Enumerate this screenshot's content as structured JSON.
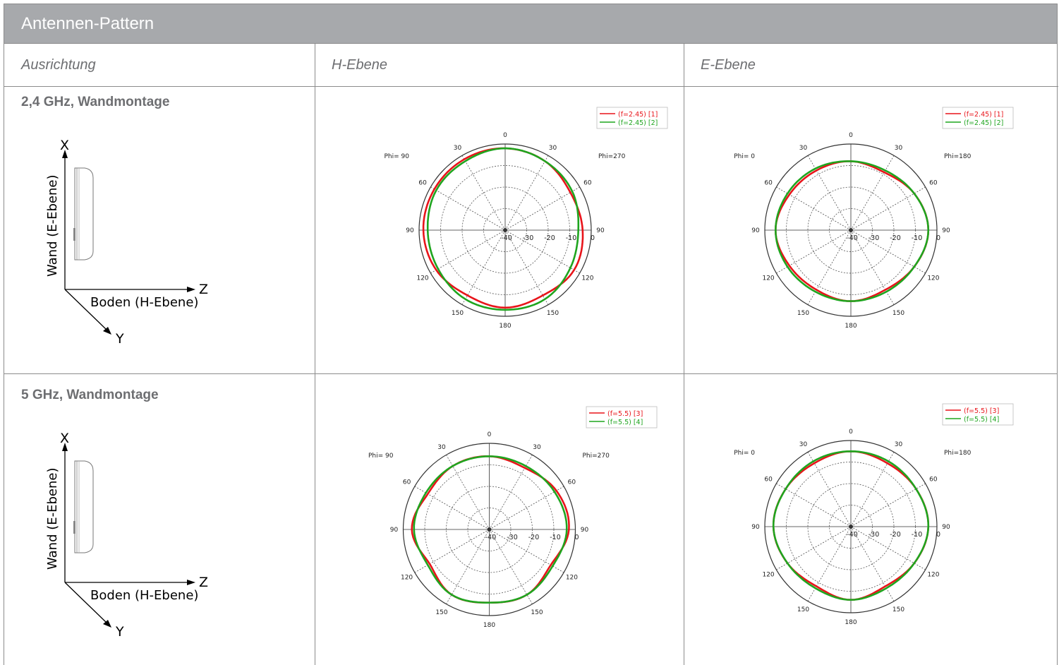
{
  "table": {
    "title": "Antennen-Pattern",
    "columns": [
      "Ausrichtung",
      "H-Ebene",
      "E-Ebene"
    ]
  },
  "orientation_diagram": {
    "x_label": "X",
    "y_label": "Y",
    "z_label": "Z",
    "wall_label": "Wand (E-Ebene)",
    "floor_label": "Boden (H-Ebene)"
  },
  "rows": [
    {
      "label": "2,4 GHz, Wandmontage",
      "h_plot": {
        "phi_left": "Phi= 90",
        "phi_right": "Phi=270",
        "legend": [
          "(f=2.45) [1]",
          "(f=2.45) [2]"
        ]
      },
      "e_plot": {
        "phi_left": "Phi= 0",
        "phi_right": "Phi=180",
        "legend": [
          "(f=2.45) [1]",
          "(f=2.45) [2]"
        ]
      }
    },
    {
      "label": "5 GHz, Wandmontage",
      "h_plot": {
        "phi_left": "Phi= 90",
        "phi_right": "Phi=270",
        "legend": [
          "(f=5.5) [3]",
          "(f=5.5) [4]"
        ]
      },
      "e_plot": {
        "phi_left": "Phi= 0",
        "phi_right": "Phi=180",
        "legend": [
          "(f=5.5) [3]",
          "(f=5.5) [4]"
        ]
      }
    }
  ],
  "polar_axes": {
    "angle_labels": [
      "0",
      "30",
      "60",
      "90",
      "120",
      "150",
      "180",
      "150",
      "120",
      "90",
      "60",
      "30"
    ],
    "radial_labels": [
      "-40",
      "-30",
      "-20",
      "-10",
      "0"
    ]
  },
  "colors": {
    "series_a": "#e8141a",
    "series_b": "#1fa51f",
    "grid": "#555555"
  },
  "chart_data": [
    {
      "type": "polar",
      "title": "2,4 GHz H-Ebene",
      "rlim": [
        -40,
        0
      ],
      "series": [
        {
          "name": "(f=2.45) [1]",
          "theta_deg": [
            0,
            30,
            60,
            90,
            120,
            150,
            180,
            210,
            240,
            270,
            300,
            330
          ],
          "r_db": [
            -2,
            -3,
            -5,
            -4,
            -3,
            -5,
            -4,
            -5,
            -3,
            -2,
            -2,
            -2
          ]
        },
        {
          "name": "(f=2.45) [2]",
          "theta_deg": [
            0,
            30,
            60,
            90,
            120,
            150,
            180,
            210,
            240,
            270,
            300,
            330
          ],
          "r_db": [
            -2,
            -3,
            -4,
            -6,
            -5,
            -3,
            -3,
            -3,
            -4,
            -4,
            -3,
            -3
          ]
        }
      ]
    },
    {
      "type": "polar",
      "title": "2,4 GHz E-Ebene",
      "rlim": [
        -40,
        0
      ],
      "series": [
        {
          "name": "(f=2.45) [1]",
          "theta_deg": [
            0,
            30,
            60,
            90,
            120,
            150,
            180,
            210,
            240,
            270,
            300,
            330
          ],
          "r_db": [
            -8,
            -9,
            -6,
            -4,
            -6,
            -8,
            -7,
            -8,
            -7,
            -5,
            -7,
            -8
          ]
        },
        {
          "name": "(f=2.45) [2]",
          "theta_deg": [
            0,
            30,
            60,
            90,
            120,
            150,
            180,
            210,
            240,
            270,
            300,
            330
          ],
          "r_db": [
            -8,
            -8,
            -6,
            -4,
            -6,
            -7,
            -7,
            -7,
            -6,
            -5,
            -6,
            -7
          ]
        }
      ]
    },
    {
      "type": "polar",
      "title": "5 GHz H-Ebene",
      "rlim": [
        -40,
        0
      ],
      "series": [
        {
          "name": "(f=5.5) [3]",
          "theta_deg": [
            0,
            30,
            60,
            90,
            120,
            150,
            180,
            210,
            240,
            270,
            300,
            330
          ],
          "r_db": [
            -6,
            -7,
            -4,
            -3,
            -7,
            -5,
            -6,
            -5,
            -8,
            -4,
            -7,
            -6
          ]
        },
        {
          "name": "(f=5.5) [4]",
          "theta_deg": [
            0,
            30,
            60,
            90,
            120,
            150,
            180,
            210,
            240,
            270,
            300,
            330
          ],
          "r_db": [
            -6,
            -6,
            -5,
            -4,
            -6,
            -5,
            -6,
            -5,
            -7,
            -5,
            -6,
            -6
          ]
        }
      ]
    },
    {
      "type": "polar",
      "title": "5 GHz E-Ebene",
      "rlim": [
        -40,
        0
      ],
      "series": [
        {
          "name": "(f=5.5) [3]",
          "theta_deg": [
            0,
            30,
            60,
            90,
            120,
            150,
            180,
            210,
            240,
            270,
            300,
            330
          ],
          "r_db": [
            -5,
            -6,
            -5,
            -4,
            -6,
            -8,
            -6,
            -8,
            -6,
            -4,
            -5,
            -6
          ]
        },
        {
          "name": "(f=5.5) [4]",
          "theta_deg": [
            0,
            30,
            60,
            90,
            120,
            150,
            180,
            210,
            240,
            270,
            300,
            330
          ],
          "r_db": [
            -5,
            -5,
            -5,
            -4,
            -6,
            -7,
            -6,
            -7,
            -6,
            -4,
            -5,
            -5
          ]
        }
      ]
    }
  ]
}
